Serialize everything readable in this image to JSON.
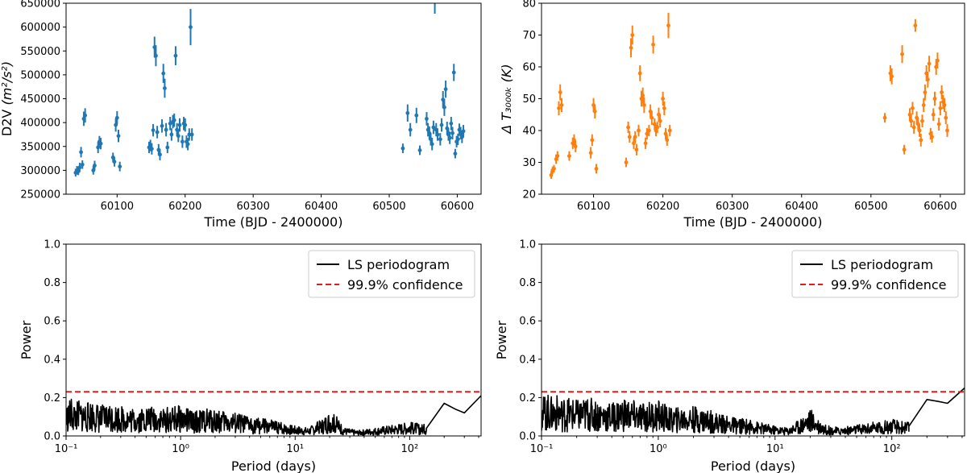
{
  "chart_data": [
    {
      "type": "scatter",
      "ylabel": "D2V",
      "ylabel_units": "(m²/s²)",
      "xlabel": "Time (BJD - 2400000)",
      "xlim": [
        60025,
        60635
      ],
      "ylim": [
        250000,
        650000
      ],
      "xticks": [
        60100,
        60200,
        60300,
        60400,
        60500,
        60600
      ],
      "yticks": [
        250000,
        300000,
        350000,
        400000,
        450000,
        500000,
        550000,
        600000,
        650000
      ],
      "tick_labels_x": [
        "60100",
        "60200",
        "60300",
        "60400",
        "60500",
        "60600"
      ],
      "tick_labels_y": [
        "250000",
        "300000",
        "350000",
        "400000",
        "450000",
        "500000",
        "550000",
        "600000",
        "650000"
      ],
      "color": "#1f77b4",
      "grid": false,
      "points": [
        [
          60039,
          295000,
          8000
        ],
        [
          60041,
          300000,
          9000
        ],
        [
          60043,
          298000,
          8000
        ],
        [
          60045,
          306000,
          10000
        ],
        [
          60047,
          338000,
          11000
        ],
        [
          60049,
          312000,
          9000
        ],
        [
          60051,
          408000,
          15000
        ],
        [
          60053,
          415000,
          15000
        ],
        [
          60065,
          300000,
          9000
        ],
        [
          60067,
          310000,
          10000
        ],
        [
          60072,
          348000,
          12000
        ],
        [
          60074,
          360000,
          12000
        ],
        [
          60076,
          356000,
          12000
        ],
        [
          60094,
          327000,
          10000
        ],
        [
          60096,
          318000,
          10000
        ],
        [
          60098,
          395000,
          14000
        ],
        [
          60100,
          410000,
          14000
        ],
        [
          60102,
          372000,
          13000
        ],
        [
          60104,
          308000,
          10000
        ],
        [
          60147,
          348000,
          12000
        ],
        [
          60149,
          352000,
          12000
        ],
        [
          60151,
          345000,
          12000
        ],
        [
          60153,
          384000,
          13000
        ],
        [
          60155,
          558000,
          22000
        ],
        [
          60157,
          540000,
          22000
        ],
        [
          60159,
          380000,
          13000
        ],
        [
          60161,
          343000,
          12000
        ],
        [
          60163,
          333000,
          12000
        ],
        [
          60166,
          393000,
          14000
        ],
        [
          60168,
          503000,
          20000
        ],
        [
          60170,
          472000,
          20000
        ],
        [
          60172,
          385000,
          14000
        ],
        [
          60174,
          348000,
          12000
        ],
        [
          60178,
          398000,
          14000
        ],
        [
          60180,
          375000,
          13000
        ],
        [
          60182,
          402000,
          14000
        ],
        [
          60184,
          405000,
          14000
        ],
        [
          60186,
          540000,
          20000
        ],
        [
          60188,
          385000,
          14000
        ],
        [
          60190,
          372000,
          13000
        ],
        [
          60192,
          395000,
          14000
        ],
        [
          60196,
          360000,
          13000
        ],
        [
          60198,
          398000,
          14000
        ],
        [
          60200,
          395000,
          14000
        ],
        [
          60202,
          360000,
          13000
        ],
        [
          60204,
          355000,
          13000
        ],
        [
          60206,
          375000,
          13000
        ],
        [
          60208,
          600000,
          38000
        ],
        [
          60210,
          375000,
          13000
        ],
        [
          60520,
          346000,
          10000
        ],
        [
          60527,
          420000,
          18000
        ],
        [
          60531,
          385000,
          14000
        ],
        [
          60540,
          415000,
          16000
        ],
        [
          60545,
          342000,
          10000
        ],
        [
          60555,
          408000,
          14000
        ],
        [
          60557,
          385000,
          14000
        ],
        [
          60559,
          378000,
          14000
        ],
        [
          60561,
          365000,
          13000
        ],
        [
          60563,
          355000,
          13000
        ],
        [
          60565,
          390000,
          14000
        ],
        [
          60567,
          658000,
          30000
        ],
        [
          60569,
          385000,
          14000
        ],
        [
          60571,
          375000,
          13000
        ],
        [
          60575,
          365000,
          13000
        ],
        [
          60577,
          395000,
          14000
        ],
        [
          60579,
          448000,
          18000
        ],
        [
          60581,
          432000,
          18000
        ],
        [
          60583,
          470000,
          18000
        ],
        [
          60585,
          388000,
          14000
        ],
        [
          60587,
          375000,
          13000
        ],
        [
          60589,
          368000,
          13000
        ],
        [
          60591,
          398000,
          14000
        ],
        [
          60593,
          378000,
          13000
        ],
        [
          60595,
          505000,
          18000
        ],
        [
          60597,
          335000,
          10000
        ],
        [
          60599,
          360000,
          12000
        ],
        [
          60601,
          365000,
          12000
        ],
        [
          60603,
          385000,
          13000
        ],
        [
          60605,
          378000,
          13000
        ],
        [
          60607,
          370000,
          13000
        ],
        [
          60609,
          382000,
          13000
        ]
      ]
    },
    {
      "type": "scatter",
      "ylabel": "Δ T₃₀₀₀ₖ (K)",
      "xlabel": "Time (BJD - 2400000)",
      "xlim": [
        60025,
        60635
      ],
      "ylim": [
        20,
        80
      ],
      "xticks": [
        60100,
        60200,
        60300,
        60400,
        60500,
        60600
      ],
      "yticks": [
        20,
        30,
        40,
        50,
        60,
        70,
        80
      ],
      "tick_labels_x": [
        "60100",
        "60200",
        "60300",
        "60400",
        "60500",
        "60600"
      ],
      "tick_labels_y": [
        "20",
        "30",
        "40",
        "50",
        "60",
        "70",
        "80"
      ],
      "color": "#ff7f0e",
      "grid": false,
      "points": [
        [
          60039,
          26,
          1.2
        ],
        [
          60041,
          27.5,
          1.2
        ],
        [
          60043,
          28,
          1.2
        ],
        [
          60046,
          31,
          1.5
        ],
        [
          60048,
          32,
          1.5
        ],
        [
          60050,
          47,
          2.2
        ],
        [
          60052,
          52,
          2.5
        ],
        [
          60054,
          48,
          2.2
        ],
        [
          60065,
          32,
          1.5
        ],
        [
          60070,
          36,
          1.8
        ],
        [
          60072,
          37,
          1.8
        ],
        [
          60074,
          35,
          1.8
        ],
        [
          60096,
          33,
          1.8
        ],
        [
          60098,
          37,
          1.8
        ],
        [
          60100,
          48,
          2.2
        ],
        [
          60102,
          46,
          2.2
        ],
        [
          60104,
          28,
          1.5
        ],
        [
          60147,
          30,
          1.5
        ],
        [
          60150,
          41,
          1.8
        ],
        [
          60152,
          38,
          1.8
        ],
        [
          60154,
          66,
          3
        ],
        [
          60156,
          70,
          3
        ],
        [
          60158,
          36,
          1.8
        ],
        [
          60160,
          38,
          1.8
        ],
        [
          60162,
          34,
          1.8
        ],
        [
          60165,
          40,
          1.8
        ],
        [
          60167,
          58,
          2.5
        ],
        [
          60169,
          50,
          2.5
        ],
        [
          60171,
          51,
          2.5
        ],
        [
          60173,
          48,
          2.5
        ],
        [
          60175,
          36,
          1.8
        ],
        [
          60177,
          39,
          1.8
        ],
        [
          60180,
          40,
          1.8
        ],
        [
          60182,
          46,
          2.2
        ],
        [
          60184,
          44,
          2.2
        ],
        [
          60186,
          67,
          2.8
        ],
        [
          60188,
          42,
          1.8
        ],
        [
          60190,
          40,
          1.8
        ],
        [
          60192,
          41,
          1.8
        ],
        [
          60194,
          45,
          2.2
        ],
        [
          60196,
          43,
          2
        ],
        [
          60200,
          50,
          2.2
        ],
        [
          60202,
          47,
          2.2
        ],
        [
          60204,
          39,
          1.8
        ],
        [
          60206,
          37,
          1.8
        ],
        [
          60208,
          73,
          4
        ],
        [
          60210,
          40,
          1.8
        ],
        [
          60520,
          44,
          1.5
        ],
        [
          60528,
          58,
          2.5
        ],
        [
          60530,
          57,
          2.5
        ],
        [
          60545,
          64,
          2.8
        ],
        [
          60548,
          34,
          1.5
        ],
        [
          60556,
          45,
          2
        ],
        [
          60558,
          43,
          2
        ],
        [
          60560,
          47,
          2
        ],
        [
          60562,
          41,
          2
        ],
        [
          60564,
          73,
          2
        ],
        [
          60566,
          44,
          2
        ],
        [
          60568,
          42,
          2
        ],
        [
          60570,
          40,
          2
        ],
        [
          60572,
          37,
          2
        ],
        [
          60574,
          43,
          2
        ],
        [
          60576,
          48,
          2.2
        ],
        [
          60578,
          52,
          2.5
        ],
        [
          60580,
          58,
          2.5
        ],
        [
          60582,
          56,
          2.5
        ],
        [
          60584,
          61,
          2.5
        ],
        [
          60586,
          39,
          1.8
        ],
        [
          60588,
          38,
          1.8
        ],
        [
          60590,
          45,
          2
        ],
        [
          60592,
          50,
          2.2
        ],
        [
          60594,
          60,
          2.5
        ],
        [
          60596,
          62,
          2.5
        ],
        [
          60598,
          42,
          2
        ],
        [
          60600,
          47,
          2.2
        ],
        [
          60602,
          52,
          2.2
        ],
        [
          60604,
          49,
          2.2
        ],
        [
          60606,
          48,
          2.2
        ],
        [
          60608,
          44,
          2
        ],
        [
          60610,
          40,
          2
        ]
      ]
    },
    {
      "type": "line",
      "ylabel": "Power",
      "xlabel": "Period (days)",
      "xscale": "log",
      "xlim": [
        0.1,
        420
      ],
      "ylim": [
        0,
        1
      ],
      "yticks": [
        0.0,
        0.2,
        0.4,
        0.6,
        0.8,
        1.0
      ],
      "tick_labels_y": [
        "0.0",
        "0.2",
        "0.4",
        "0.6",
        "0.8",
        "1.0"
      ],
      "xticks_major": [
        0.1,
        1,
        10,
        100
      ],
      "tick_labels_x": [
        "10⁻¹",
        "10⁰",
        "10¹",
        "10²"
      ],
      "legend": [
        "LS periodogram",
        "99.9% confidence"
      ],
      "legend_position": "top-right",
      "threshold": 0.23,
      "series": [
        {
          "name": "LS periodogram",
          "color": "#000000",
          "x": [
            0.1,
            0.11,
            0.12,
            0.13,
            0.15,
            0.17,
            0.2,
            0.25,
            0.3,
            0.4,
            0.5,
            0.7,
            1.0,
            1.3,
            1.8,
            2.5,
            4,
            6,
            9,
            13,
            17,
            20,
            23,
            27,
            35,
            50,
            70,
            100,
            140,
            200,
            250,
            300,
            420
          ],
          "y": [
            0.11,
            0.14,
            0.12,
            0.13,
            0.12,
            0.13,
            0.11,
            0.12,
            0.11,
            0.1,
            0.11,
            0.1,
            0.11,
            0.09,
            0.1,
            0.09,
            0.07,
            0.06,
            0.04,
            0.03,
            0.06,
            0.09,
            0.07,
            0.03,
            0.02,
            0.03,
            0.04,
            0.05,
            0.04,
            0.17,
            0.14,
            0.12,
            0.21
          ]
        },
        {
          "name": "99.9% confidence",
          "color": "#e41a1c",
          "x": [
            0.1,
            420
          ],
          "y": [
            0.23,
            0.23
          ]
        }
      ]
    },
    {
      "type": "line",
      "ylabel": "Power",
      "xlabel": "Period (days)",
      "xscale": "log",
      "xlim": [
        0.1,
        420
      ],
      "ylim": [
        0,
        1
      ],
      "yticks": [
        0.0,
        0.2,
        0.4,
        0.6,
        0.8,
        1.0
      ],
      "tick_labels_y": [
        "0.0",
        "0.2",
        "0.4",
        "0.6",
        "0.8",
        "1.0"
      ],
      "xticks_major": [
        0.1,
        1,
        10,
        100
      ],
      "tick_labels_x": [
        "10⁻¹",
        "10⁰",
        "10¹",
        "10²"
      ],
      "legend": [
        "LS periodogram",
        "99.9% confidence"
      ],
      "legend_position": "top-right",
      "threshold": 0.23,
      "series": [
        {
          "name": "LS periodogram",
          "color": "#000000",
          "x": [
            0.1,
            0.11,
            0.12,
            0.13,
            0.15,
            0.17,
            0.2,
            0.25,
            0.3,
            0.4,
            0.5,
            0.7,
            1.0,
            1.3,
            1.8,
            2.5,
            4,
            6,
            9,
            13,
            17,
            20,
            23,
            27,
            35,
            50,
            70,
            100,
            140,
            200,
            250,
            300,
            420
          ],
          "y": [
            0.13,
            0.16,
            0.14,
            0.15,
            0.14,
            0.14,
            0.13,
            0.14,
            0.13,
            0.12,
            0.14,
            0.12,
            0.13,
            0.1,
            0.11,
            0.1,
            0.07,
            0.06,
            0.04,
            0.03,
            0.07,
            0.1,
            0.07,
            0.04,
            0.03,
            0.04,
            0.05,
            0.06,
            0.05,
            0.19,
            0.18,
            0.17,
            0.25
          ]
        },
        {
          "name": "99.9% confidence",
          "color": "#e41a1c",
          "x": [
            0.1,
            420
          ],
          "y": [
            0.23,
            0.23
          ]
        }
      ]
    }
  ]
}
